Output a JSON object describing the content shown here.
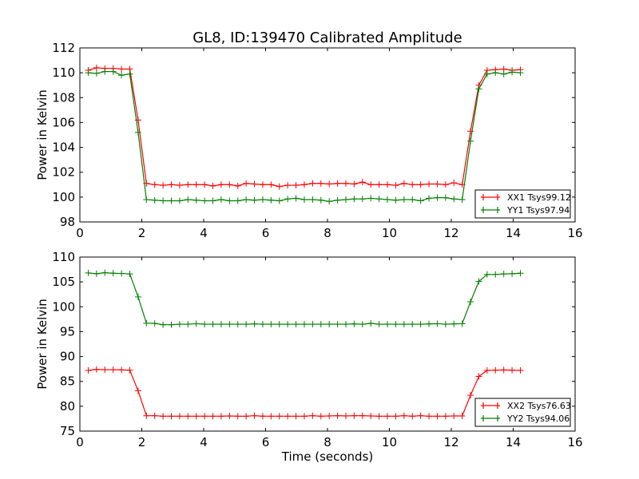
{
  "chart_data": [
    {
      "type": "line",
      "title": "GL8, ID:139470 Calibrated Amplitude",
      "xlabel": "",
      "ylabel": "Power in Kelvin",
      "xlim": [
        0,
        16
      ],
      "ylim": [
        98,
        112
      ],
      "xticks": [
        0,
        2,
        4,
        6,
        8,
        10,
        12,
        14,
        16
      ],
      "yticks": [
        98,
        100,
        102,
        104,
        106,
        108,
        110,
        112
      ],
      "legend_position": "lower-right",
      "x_start": 0.27,
      "x_step": 0.2685,
      "series": [
        {
          "name": "XX1 Tsys99.12",
          "color": "#ff0000",
          "values": [
            110.2,
            110.4,
            110.35,
            110.35,
            110.3,
            110.3,
            106.2,
            101.1,
            101.0,
            100.95,
            101.0,
            100.95,
            101.0,
            101.0,
            101.0,
            100.9,
            101.0,
            101.0,
            100.9,
            101.1,
            101.05,
            101.0,
            101.0,
            100.85,
            100.95,
            100.95,
            101.0,
            101.1,
            101.1,
            101.05,
            101.1,
            101.1,
            101.05,
            101.2,
            101.0,
            101.0,
            101.0,
            100.95,
            101.1,
            101.0,
            101.0,
            101.05,
            101.05,
            101.0,
            101.15,
            101.0,
            105.3,
            109.0,
            110.2,
            110.25,
            110.3,
            110.2,
            110.25
          ]
        },
        {
          "name": "YY1 Tsys97.94",
          "color": "#008000",
          "values": [
            110.0,
            109.95,
            110.1,
            110.1,
            109.8,
            109.9,
            105.2,
            99.8,
            99.75,
            99.7,
            99.7,
            99.7,
            99.8,
            99.75,
            99.7,
            99.7,
            99.8,
            99.7,
            99.7,
            99.8,
            99.75,
            99.8,
            99.75,
            99.7,
            99.85,
            99.9,
            99.8,
            99.8,
            99.75,
            99.65,
            99.75,
            99.8,
            99.85,
            99.85,
            99.9,
            99.85,
            99.8,
            99.75,
            99.8,
            99.8,
            99.7,
            99.9,
            99.95,
            99.95,
            99.85,
            99.8,
            104.5,
            108.7,
            109.9,
            110.0,
            109.9,
            110.05,
            110.0
          ]
        }
      ]
    },
    {
      "type": "line",
      "title": "",
      "xlabel": "Time (seconds)",
      "ylabel": "Power in Kelvin",
      "xlim": [
        0,
        16
      ],
      "ylim": [
        75,
        110
      ],
      "xticks": [
        0,
        2,
        4,
        6,
        8,
        10,
        12,
        14,
        16
      ],
      "yticks": [
        75,
        80,
        85,
        90,
        95,
        100,
        105,
        110
      ],
      "legend_position": "lower-right",
      "x_start": 0.27,
      "x_step": 0.2685,
      "series": [
        {
          "name": "XX2 Tsys76.63",
          "color": "#ff0000",
          "values": [
            87.2,
            87.4,
            87.35,
            87.35,
            87.3,
            87.25,
            83.1,
            78.1,
            78.1,
            78.0,
            78.0,
            78.0,
            78.0,
            78.0,
            78.0,
            78.0,
            78.0,
            78.05,
            78.0,
            78.0,
            78.1,
            78.0,
            78.0,
            78.0,
            78.0,
            78.0,
            78.0,
            78.1,
            78.0,
            78.05,
            78.1,
            78.05,
            78.1,
            78.1,
            78.05,
            78.0,
            78.0,
            78.0,
            78.1,
            78.0,
            78.1,
            78.0,
            78.0,
            78.0,
            78.05,
            78.05,
            82.2,
            86.0,
            87.2,
            87.25,
            87.3,
            87.25,
            87.2
          ]
        },
        {
          "name": "YY2 Tsys94.06",
          "color": "#008000",
          "values": [
            106.8,
            106.65,
            106.85,
            106.75,
            106.7,
            106.6,
            102.0,
            96.7,
            96.65,
            96.4,
            96.4,
            96.5,
            96.5,
            96.6,
            96.5,
            96.5,
            96.5,
            96.5,
            96.5,
            96.5,
            96.55,
            96.5,
            96.5,
            96.5,
            96.5,
            96.5,
            96.5,
            96.5,
            96.5,
            96.5,
            96.5,
            96.5,
            96.55,
            96.5,
            96.65,
            96.5,
            96.5,
            96.5,
            96.5,
            96.5,
            96.5,
            96.55,
            96.6,
            96.5,
            96.55,
            96.6,
            101.0,
            105.1,
            106.5,
            106.5,
            106.6,
            106.65,
            106.75
          ]
        }
      ]
    }
  ]
}
